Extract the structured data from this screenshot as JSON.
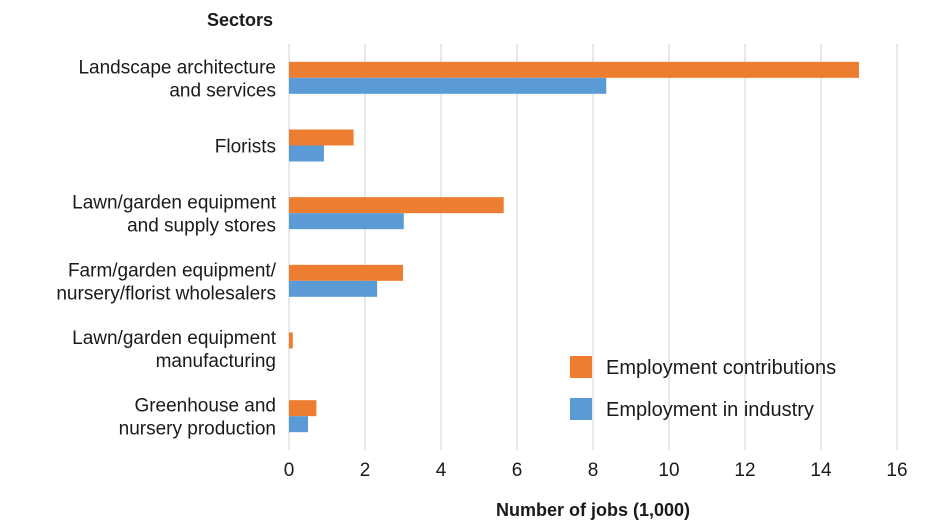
{
  "chart_data": {
    "type": "bar",
    "orientation": "horizontal",
    "title": "",
    "ylabel": "Sectors",
    "xlabel": "Number of jobs (1,000)",
    "xlim": [
      0,
      16
    ],
    "xticks": [
      0,
      2,
      4,
      6,
      8,
      10,
      12,
      14,
      16
    ],
    "grid": true,
    "legend_position": "bottom-right",
    "categories": [
      [
        "Landscape architecture",
        "and services"
      ],
      [
        "Florists"
      ],
      [
        "Lawn/garden equipment",
        "and supply stores"
      ],
      [
        "Farm/garden equipment/",
        "nursery/florist wholesalers"
      ],
      [
        "Lawn/garden equipment",
        "manufacturing"
      ],
      [
        "Greenhouse and",
        "nursery production"
      ]
    ],
    "series": [
      {
        "name": "Employment contributions",
        "color": "#ED7D31",
        "values": [
          15.0,
          1.7,
          5.65,
          3.0,
          0.1,
          0.72
        ]
      },
      {
        "name": "Employment in industry",
        "color": "#5B9BD5",
        "values": [
          8.35,
          0.92,
          3.02,
          2.32,
          0.0,
          0.5
        ]
      }
    ]
  }
}
